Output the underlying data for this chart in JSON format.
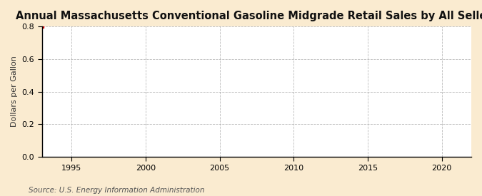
{
  "title": "Annual Massachusetts Conventional Gasoline Midgrade Retail Sales by All Sellers",
  "ylabel": "Dollars per Gallon",
  "source_text": "Source: U.S. Energy Information Administration",
  "fig_bg_color": "#faebd0",
  "plot_bg_color": "#ffffff",
  "grid_color": "#aaaaaa",
  "spine_color": "#000000",
  "xlim": [
    1993,
    2022
  ],
  "ylim": [
    0.0,
    0.8
  ],
  "xticks": [
    1995,
    2000,
    2005,
    2010,
    2015,
    2020
  ],
  "yticks": [
    0.0,
    0.2,
    0.4,
    0.6,
    0.8
  ],
  "data_x": [
    1993
  ],
  "data_y": [
    0.8
  ],
  "data_color": "#cc0000",
  "title_fontsize": 10.5,
  "label_fontsize": 8,
  "tick_fontsize": 8,
  "source_fontsize": 7.5
}
